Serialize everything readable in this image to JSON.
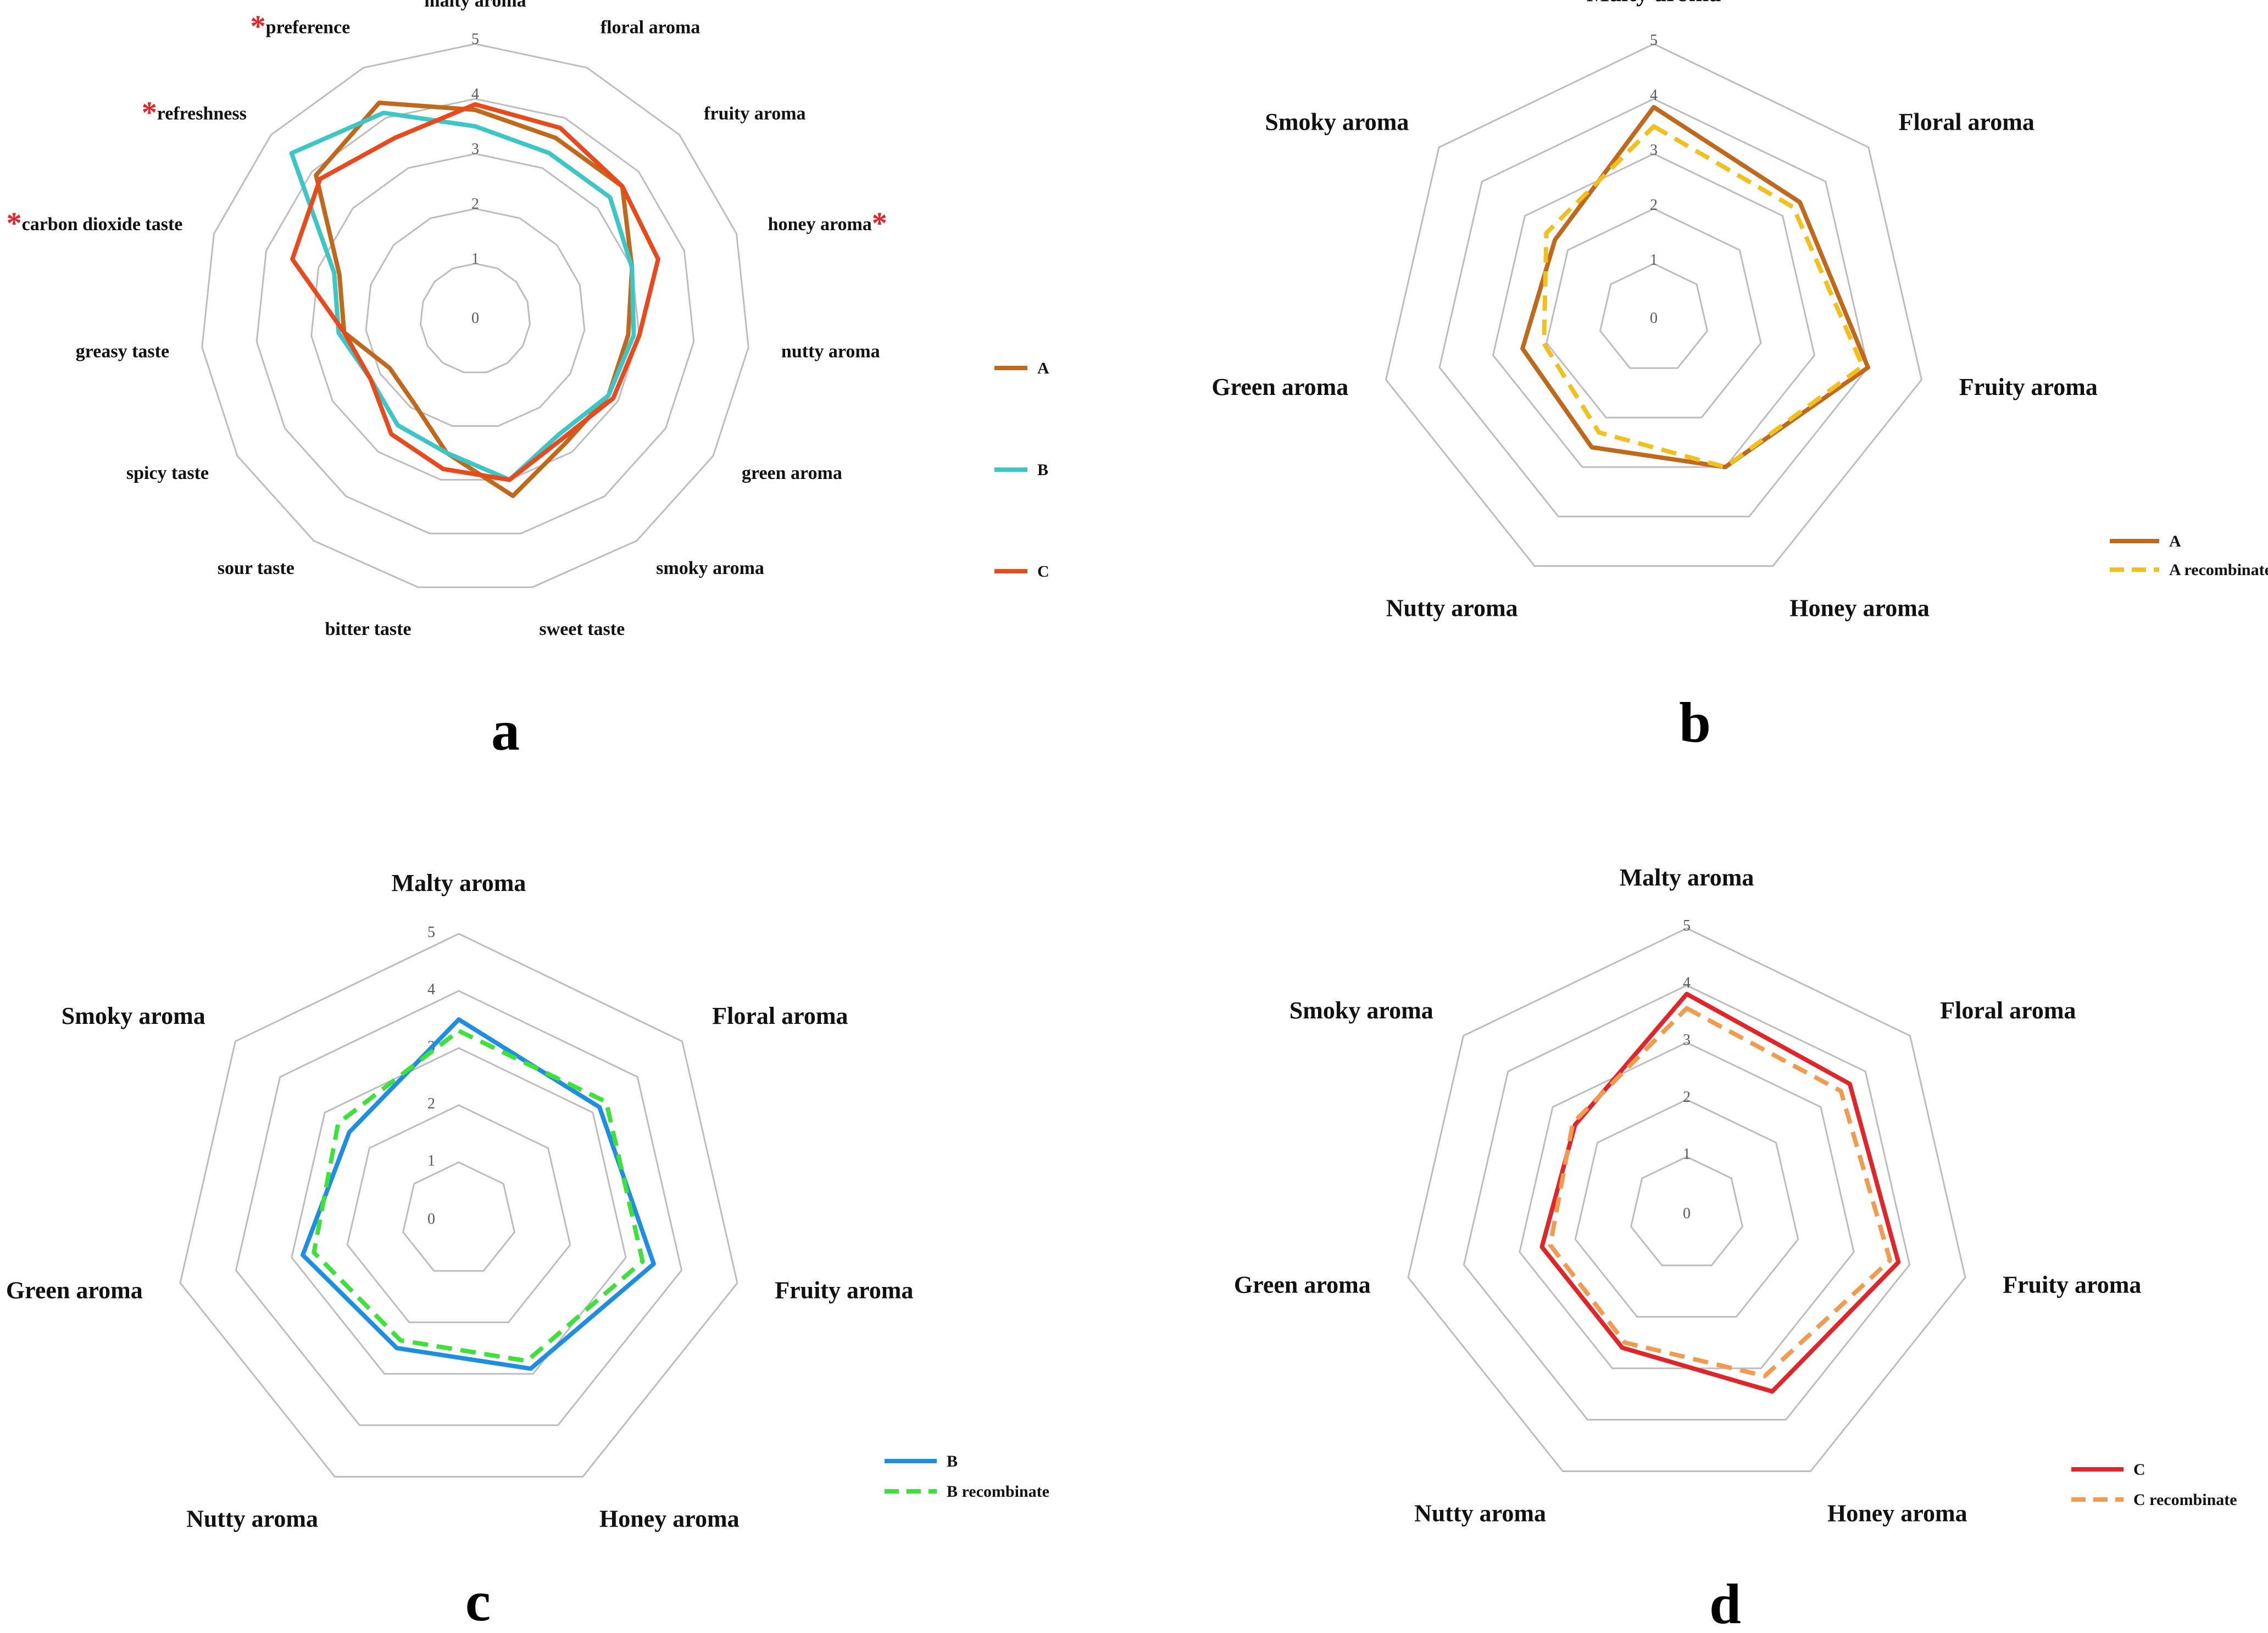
{
  "colors": {
    "star": "#e0262b"
  },
  "chart_data": [
    {
      "type": "radar",
      "panel_label": "a",
      "rlim": [
        0,
        5
      ],
      "ticks": [
        "0",
        "1",
        "2",
        "3",
        "4",
        "5"
      ],
      "categories": [
        "malty aroma",
        "floral aroma",
        "fruity aroma",
        "honey aroma",
        "nutty aroma",
        "green aroma",
        "smoky aroma",
        "sweet taste",
        "bitter taste",
        "sour taste",
        "spicy taste",
        "greasy taste",
        "carbon dioxide taste",
        "refreshness",
        "preference"
      ],
      "significant": [
        "honey aroma",
        "carbon dioxide taste",
        "refreshness",
        "preference"
      ],
      "significance_marker": "*",
      "legend_position": "right",
      "series": [
        {
          "name": "A",
          "color": "#c0681c",
          "dashed": false,
          "values": [
            3.8,
            3.6,
            3.6,
            3.0,
            2.8,
            2.8,
            2.8,
            3.3,
            2.5,
            1.9,
            1.8,
            2.4,
            2.6,
            3.9,
            4.3
          ]
        },
        {
          "name": "B",
          "color": "#3cc6c6",
          "dashed": false,
          "values": [
            3.5,
            3.3,
            3.3,
            3.0,
            2.9,
            2.8,
            2.6,
            3.0,
            2.5,
            2.4,
            2.2,
            2.5,
            2.7,
            4.5,
            4.1
          ]
        },
        {
          "name": "C",
          "color": "#e84a1e",
          "dashed": false,
          "values": [
            3.9,
            3.8,
            3.6,
            3.5,
            3.0,
            2.9,
            2.7,
            3.0,
            2.8,
            2.6,
            2.2,
            2.4,
            3.5,
            3.8,
            3.6
          ]
        }
      ]
    },
    {
      "type": "radar",
      "panel_label": "b",
      "rlim": [
        0,
        5
      ],
      "ticks": [
        "0",
        "1",
        "2",
        "3",
        "4",
        "5"
      ],
      "categories": [
        "Malty aroma",
        "Floral aroma",
        "Fruity aroma",
        "Honey aroma",
        "Nutty aroma",
        "Green aroma",
        "Smoky aroma"
      ],
      "legend_position": "bottom-right",
      "series": [
        {
          "name": "A",
          "color": "#c0681c",
          "dashed": false,
          "values": [
            3.85,
            3.4,
            4.0,
            3.0,
            2.6,
            2.45,
            2.3
          ]
        },
        {
          "name": "A recombinate",
          "color": "#f2c01e",
          "dashed": true,
          "values": [
            3.5,
            3.25,
            3.9,
            3.0,
            2.3,
            2.05,
            2.5
          ]
        }
      ]
    },
    {
      "type": "radar",
      "panel_label": "c",
      "rlim": [
        0,
        5
      ],
      "ticks": [
        "0",
        "1",
        "2",
        "3",
        "4",
        "5"
      ],
      "categories": [
        "Malty aroma",
        "Floral aroma",
        "Fruity aroma",
        "Honey aroma",
        "Nutty aroma",
        "Green aroma",
        "Smoky aroma"
      ],
      "legend_position": "bottom-right",
      "series": [
        {
          "name": "B",
          "color": "#1e8fe0",
          "dashed": false,
          "values": [
            3.5,
            3.15,
            3.5,
            2.9,
            2.5,
            2.8,
            2.45
          ]
        },
        {
          "name": "B recombinate",
          "color": "#3ee03a",
          "dashed": true,
          "values": [
            3.3,
            3.3,
            3.3,
            2.75,
            2.35,
            2.6,
            2.7
          ]
        }
      ]
    },
    {
      "type": "radar",
      "panel_label": "d",
      "rlim": [
        0,
        5
      ],
      "ticks": [
        "0",
        "1",
        "2",
        "3",
        "4",
        "5"
      ],
      "categories": [
        "Malty aroma",
        "Floral aroma",
        "Fruity aroma",
        "Honey aroma",
        "Nutty aroma",
        "Green aroma",
        "Smoky aroma"
      ],
      "legend_position": "bottom-right",
      "series": [
        {
          "name": "C",
          "color": "#e0262b",
          "dashed": false,
          "values": [
            3.85,
            3.65,
            3.8,
            3.45,
            2.6,
            2.6,
            2.5
          ]
        },
        {
          "name": "C recombinate",
          "color": "#f29a50",
          "dashed": true,
          "values": [
            3.6,
            3.45,
            3.65,
            3.15,
            2.5,
            2.45,
            2.55
          ]
        }
      ]
    }
  ]
}
